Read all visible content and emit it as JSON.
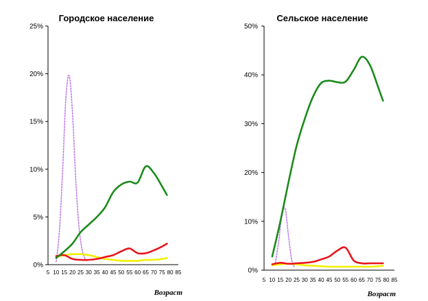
{
  "chart_data": [
    {
      "type": "line",
      "title": "Городское население",
      "xlabel": "Возраст",
      "ylabel": "",
      "x_ticks": [
        "5",
        "10",
        "15",
        "20",
        "25",
        "30",
        "35",
        "40",
        "45",
        "50",
        "55",
        "60",
        "65",
        "70",
        "75",
        "80",
        "85"
      ],
      "x_range": [
        5,
        85
      ],
      "y_ticks": [
        "0%",
        "5%",
        "10%",
        "15%",
        "20%",
        "25%"
      ],
      "ylim": [
        0,
        25
      ],
      "grid": false,
      "legend": "none",
      "series": [
        {
          "name": "green",
          "color": "#1a8a1a",
          "dash": "solid",
          "x": [
            10,
            15,
            20,
            25,
            30,
            35,
            40,
            45,
            50,
            55,
            60,
            65,
            70,
            75,
            78
          ],
          "y": [
            0.7,
            1.4,
            2.2,
            3.4,
            4.2,
            5.0,
            6.0,
            7.6,
            8.4,
            8.7,
            8.6,
            10.3,
            9.6,
            8.2,
            7.3
          ]
        },
        {
          "name": "red",
          "color": "#e8141c",
          "dash": "solid",
          "x": [
            10,
            15,
            20,
            25,
            30,
            35,
            40,
            45,
            50,
            55,
            60,
            65,
            70,
            75,
            78
          ],
          "y": [
            0.9,
            1.0,
            0.6,
            0.5,
            0.5,
            0.6,
            0.8,
            1.0,
            1.4,
            1.7,
            1.2,
            1.2,
            1.5,
            1.9,
            2.2
          ]
        },
        {
          "name": "yellow",
          "color": "#f0f000",
          "dash": "solid",
          "x": [
            10,
            15,
            20,
            25,
            30,
            35,
            40,
            45,
            50,
            55,
            60,
            65,
            70,
            75,
            78
          ],
          "y": [
            0.8,
            1.0,
            1.1,
            1.1,
            1.0,
            0.8,
            0.6,
            0.5,
            0.4,
            0.4,
            0.4,
            0.5,
            0.5,
            0.6,
            0.7
          ]
        },
        {
          "name": "violet",
          "color": "#c080e8",
          "dash": "dotted",
          "x": [
            10,
            12,
            14,
            16,
            18,
            20,
            22,
            24,
            26,
            28
          ],
          "y": [
            0.3,
            3.5,
            10.0,
            17.5,
            19.8,
            16.0,
            9.0,
            4.0,
            1.5,
            0.5
          ]
        }
      ]
    },
    {
      "type": "line",
      "title": "Сельское население",
      "xlabel": "Возраст",
      "ylabel": "",
      "x_ticks": [
        "5",
        "10",
        "15",
        "20",
        "25",
        "30",
        "35",
        "40",
        "45",
        "50",
        "55",
        "60",
        "65",
        "70",
        "75",
        "80",
        "85"
      ],
      "x_range": [
        5,
        85
      ],
      "y_ticks": [
        "0%",
        "10%",
        "20%",
        "30%",
        "40%",
        "50%"
      ],
      "ylim": [
        0,
        50
      ],
      "grid": false,
      "legend": "none",
      "series": [
        {
          "name": "green",
          "color": "#1a8a1a",
          "dash": "solid",
          "x": [
            10,
            15,
            20,
            25,
            30,
            35,
            40,
            45,
            50,
            55,
            60,
            65,
            70,
            75,
            78
          ],
          "y": [
            2.8,
            10.0,
            18.0,
            25.5,
            31.0,
            35.5,
            38.3,
            38.8,
            38.5,
            38.6,
            41.0,
            43.7,
            42.0,
            37.5,
            34.7
          ]
        },
        {
          "name": "red",
          "color": "#e8141c",
          "dash": "solid",
          "x": [
            10,
            15,
            20,
            25,
            30,
            35,
            40,
            45,
            50,
            55,
            60,
            65,
            70,
            75,
            78
          ],
          "y": [
            1.2,
            1.5,
            1.3,
            1.4,
            1.5,
            1.7,
            2.2,
            2.8,
            4.0,
            4.6,
            2.0,
            1.4,
            1.4,
            1.4,
            1.4
          ]
        },
        {
          "name": "yellow",
          "color": "#f0f000",
          "dash": "solid",
          "x": [
            10,
            15,
            20,
            25,
            30,
            35,
            40,
            45,
            50,
            55,
            60,
            65,
            70,
            75,
            78
          ],
          "y": [
            1.0,
            1.2,
            1.3,
            1.2,
            1.0,
            0.9,
            0.8,
            0.7,
            0.7,
            0.7,
            0.7,
            0.7,
            0.7,
            0.8,
            0.9
          ]
        },
        {
          "name": "violet",
          "color": "#c080e8",
          "dash": "dotted",
          "x": [
            12,
            14,
            16,
            18,
            20,
            22,
            24
          ],
          "y": [
            1.5,
            6.0,
            11.5,
            12.5,
            7.0,
            2.0,
            0.5
          ]
        }
      ]
    }
  ]
}
